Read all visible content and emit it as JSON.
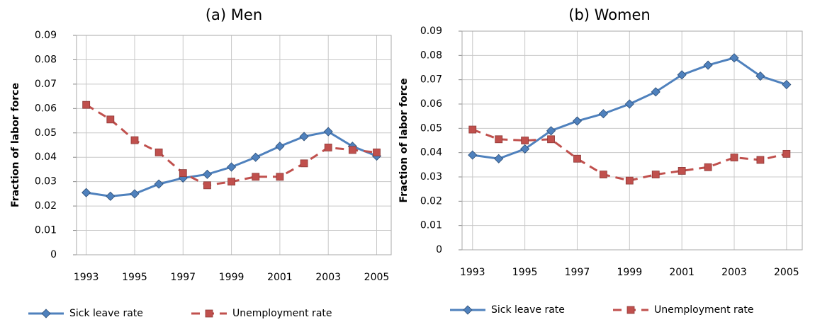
{
  "chart_data": [
    {
      "type": "line",
      "title": "(a) Men",
      "y_label": "Fraction of labor force",
      "x": [
        1993,
        1994,
        1995,
        1996,
        1997,
        1998,
        1999,
        2000,
        2001,
        2002,
        2003,
        2004,
        2005
      ],
      "xlim": [
        1992.6,
        2005.6
      ],
      "xticks": [
        1993,
        1995,
        1997,
        1999,
        2001,
        2003,
        2005
      ],
      "ylim": [
        0,
        0.09
      ],
      "yticks": [
        0,
        0.01,
        0.02,
        0.03,
        0.04,
        0.05,
        0.06,
        0.07,
        0.08,
        0.09
      ],
      "grid": true,
      "series": [
        {
          "name": "Sick leave rate",
          "color": "#4f81bd",
          "marker": "diamond",
          "dash": false,
          "values": [
            0.0255,
            0.024,
            0.025,
            0.029,
            0.0315,
            0.033,
            0.036,
            0.04,
            0.0445,
            0.0485,
            0.0505,
            0.0445,
            0.0405
          ]
        },
        {
          "name": "Unemployment rate",
          "color": "#c0504d",
          "marker": "square",
          "dash": true,
          "values": [
            0.0615,
            0.0555,
            0.047,
            0.042,
            0.0335,
            0.0285,
            0.03,
            0.032,
            0.032,
            0.0375,
            0.044,
            0.043,
            0.042
          ]
        }
      ]
    },
    {
      "type": "line",
      "title": "(b) Women",
      "y_label": "Fraction of labor force",
      "x": [
        1993,
        1994,
        1995,
        1996,
        1997,
        1998,
        1999,
        2000,
        2001,
        2002,
        2003,
        2004,
        2005
      ],
      "xlim": [
        1992.6,
        2005.6
      ],
      "xticks": [
        1993,
        1995,
        1997,
        1999,
        2001,
        2003,
        2005
      ],
      "ylim": [
        0,
        0.09
      ],
      "yticks": [
        0,
        0.01,
        0.02,
        0.03,
        0.04,
        0.05,
        0.06,
        0.07,
        0.08,
        0.09
      ],
      "grid": true,
      "series": [
        {
          "name": "Sick leave rate",
          "color": "#4f81bd",
          "marker": "diamond",
          "dash": false,
          "values": [
            0.039,
            0.0375,
            0.0415,
            0.049,
            0.053,
            0.056,
            0.06,
            0.065,
            0.072,
            0.076,
            0.079,
            0.0715,
            0.068
          ]
        },
        {
          "name": "Unemployment rate",
          "color": "#c0504d",
          "marker": "square",
          "dash": true,
          "values": [
            0.0495,
            0.0455,
            0.045,
            0.0455,
            0.0375,
            0.031,
            0.0285,
            0.031,
            0.0325,
            0.034,
            0.038,
            0.037,
            0.0395
          ]
        }
      ]
    }
  ]
}
